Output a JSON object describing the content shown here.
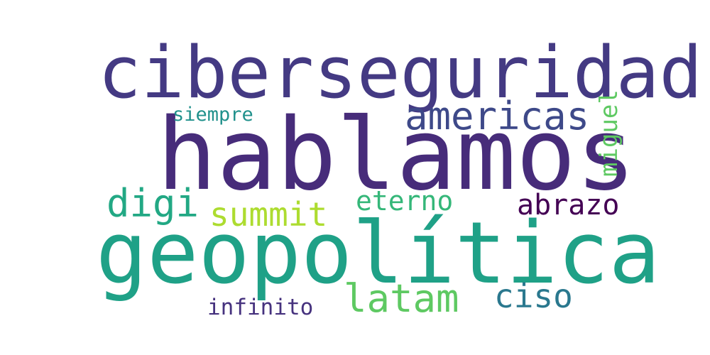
{
  "word_cloud": {
    "background_color": "#ffffff",
    "words": [
      {
        "text": "ciberseguridad",
        "color": "#443a83"
      },
      {
        "text": "hablamos",
        "color": "#472c7a"
      },
      {
        "text": "americas",
        "color": "#3e4989"
      },
      {
        "text": "siempre",
        "color": "#21918c"
      },
      {
        "text": "miguel",
        "color": "#5ec962"
      },
      {
        "text": "digi",
        "color": "#22a884"
      },
      {
        "text": "summit",
        "color": "#addc30"
      },
      {
        "text": "eterno",
        "color": "#35b779"
      },
      {
        "text": "abrazo",
        "color": "#440154"
      },
      {
        "text": "geopolítica",
        "color": "#1fa187"
      },
      {
        "text": "latam",
        "color": "#5ec962"
      },
      {
        "text": "ciso",
        "color": "#2a788e"
      },
      {
        "text": "infinito",
        "color": "#46327e"
      }
    ]
  }
}
